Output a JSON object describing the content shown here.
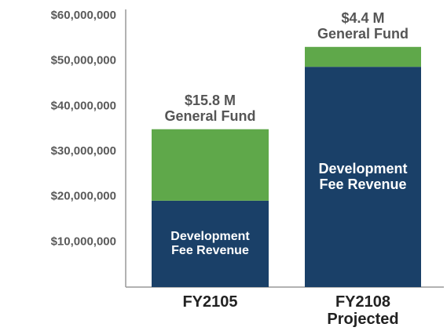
{
  "chart_data": {
    "type": "stacked_bar",
    "categories": [
      "FY2105",
      "FY2108\nProjected"
    ],
    "series": [
      {
        "name": "Development Fee Revenue",
        "color": "#1a4068",
        "values": [
          19100000,
          48700000
        ]
      },
      {
        "name": "General Fund",
        "color": "#5fa84a",
        "values": [
          15800000,
          4400000
        ],
        "value_labels": [
          "$15.8 M",
          "$4.4 M"
        ]
      }
    ],
    "ylim": [
      0,
      60000000
    ],
    "yticks": [
      {
        "value": 10000000,
        "label": "$10,000,000"
      },
      {
        "value": 20000000,
        "label": "$20,000,000"
      },
      {
        "value": 30000000,
        "label": "$30,000,000"
      },
      {
        "value": 40000000,
        "label": "$40,000,000"
      },
      {
        "value": 50000000,
        "label": "$50,000,000"
      },
      {
        "value": 60000000,
        "label": "$60,000,000"
      }
    ],
    "grid": false
  }
}
